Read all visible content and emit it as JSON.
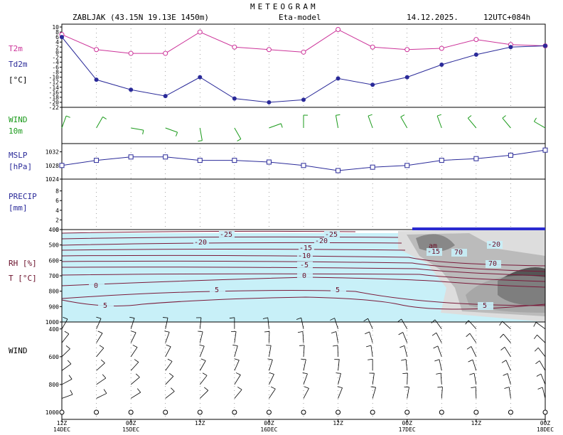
{
  "header": {
    "title": "METEOGRAM",
    "station": "ZABLJAK (43.15N 19.13E  1450m)",
    "model": "Eta-model",
    "date": "14.12.2025.",
    "run": "12UTC+084h"
  },
  "colors": {
    "t2m": "#cc3399",
    "td2m": "#2a2a99",
    "wind10": "#1a9a1a",
    "mslp": "#2a2a99",
    "rh_fill": "#c8f0f8",
    "temp_contour": "#7a1a3a",
    "humid_dark": "#555555"
  },
  "panels": {
    "temp": {
      "label_t": "T2m",
      "label_td": "Td2m",
      "unit": "[°C]",
      "ticks": [
        "10",
        "8",
        "6",
        "4",
        "2",
        "0",
        "-2",
        "-4",
        "-6",
        "-8",
        "-10",
        "-12",
        "-14",
        "-16",
        "-18",
        "-20",
        "-22"
      ]
    },
    "wind10": {
      "label": "WIND",
      "sublabel": "10m"
    },
    "mslp": {
      "label": "MSLP",
      "unit": "[hPa]",
      "ticks": [
        "1032",
        "1028",
        "1024"
      ]
    },
    "precip": {
      "label": "PRECIP",
      "unit": "[mm]",
      "ticks": [
        "8",
        "6",
        "4",
        "2",
        "0"
      ]
    },
    "rh": {
      "label": "RH [%]",
      "label2": "T [°C]",
      "ticks": [
        "400",
        "500",
        "600",
        "700",
        "800",
        "900",
        "1000"
      ]
    },
    "windprof": {
      "label": "WIND",
      "ticks": [
        "400",
        "600",
        "800",
        "1000"
      ]
    }
  },
  "chart_data": {
    "type": "line",
    "x_ticks": [
      {
        "top": "12Z",
        "bottom": "14DEC"
      },
      {
        "top": "00Z",
        "bottom": "15DEC"
      },
      {
        "top": "12Z",
        "bottom": ""
      },
      {
        "top": "00Z",
        "bottom": "16DEC"
      },
      {
        "top": "12Z",
        "bottom": ""
      },
      {
        "top": "00Z",
        "bottom": "17DEC"
      },
      {
        "top": "12Z",
        "bottom": ""
      },
      {
        "top": "00Z",
        "bottom": "18DEC"
      }
    ],
    "forecast_hours": [
      0,
      6,
      12,
      18,
      24,
      30,
      36,
      42,
      48,
      54,
      60,
      66,
      72,
      78,
      84
    ],
    "t2m": [
      7,
      1,
      -0.5,
      -0.5,
      8,
      2,
      1,
      0,
      9,
      2,
      1,
      1.5,
      5,
      3,
      2.5
    ],
    "td2m": [
      6,
      -11,
      -15,
      -17.5,
      -10,
      -18.5,
      -20,
      -19,
      -10.5,
      -13,
      -10,
      -5,
      -1,
      2,
      2.5
    ],
    "temp_ylim": [
      -22,
      10
    ],
    "mslp": [
      1028,
      1029.5,
      1030.5,
      1030.5,
      1029.5,
      1029.5,
      1029,
      1028,
      1026.5,
      1027.5,
      1028,
      1029.5,
      1030,
      1031,
      1032.5
    ],
    "mslp_ylim": [
      1024,
      1034
    ],
    "precip": [
      0,
      0,
      0,
      0,
      0,
      0,
      0,
      0,
      0,
      0,
      0,
      0,
      0,
      0,
      0
    ],
    "precip_ylim": [
      0,
      10
    ],
    "temp_contour_labels": [
      "-25",
      "-20",
      "-25",
      "-20",
      "-15",
      "-10",
      "-5",
      "0",
      "0",
      "5",
      "5",
      "5",
      "-15",
      "-20",
      "70",
      "70",
      "5"
    ]
  }
}
